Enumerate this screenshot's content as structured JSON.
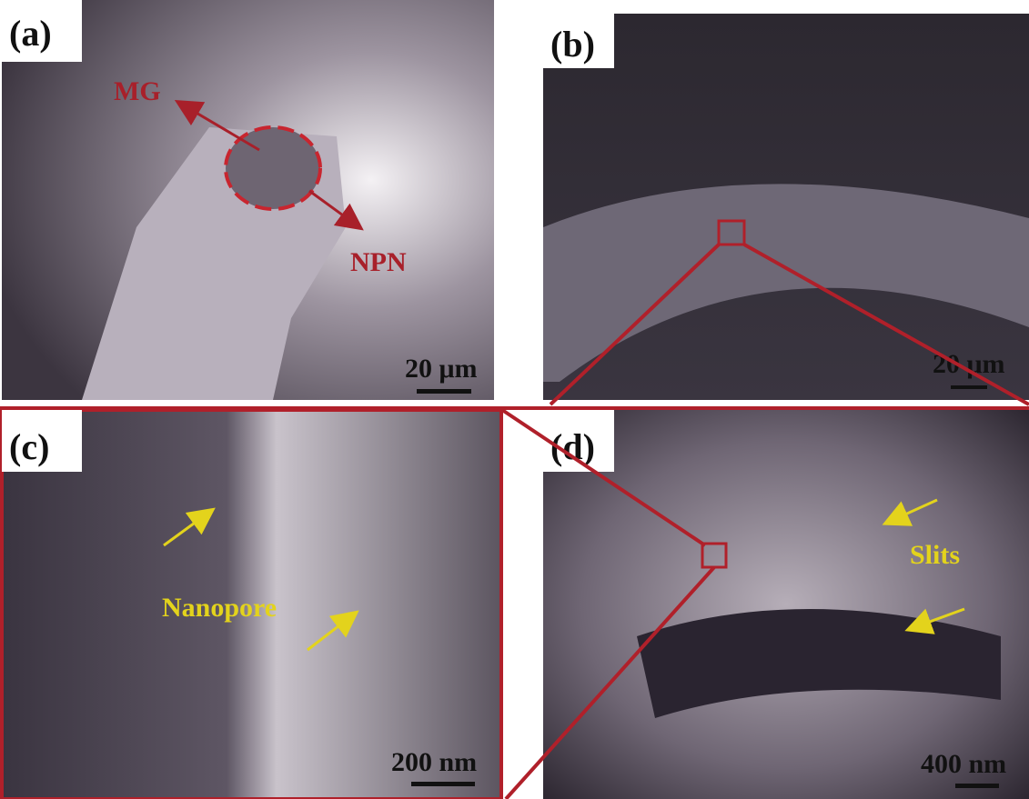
{
  "panels": [
    {
      "label": "(a)",
      "annotations": [
        "MG",
        "NPN"
      ],
      "scale_bar": "20 μm"
    },
    {
      "label": "(b)",
      "annotations": [],
      "scale_bar": "20 μm"
    },
    {
      "label": "(c)",
      "annotations": [
        "Nanopore"
      ],
      "scale_bar": "200 nm"
    },
    {
      "label": "(d)",
      "annotations": [
        "Slits"
      ],
      "scale_bar": "400 nm"
    }
  ]
}
